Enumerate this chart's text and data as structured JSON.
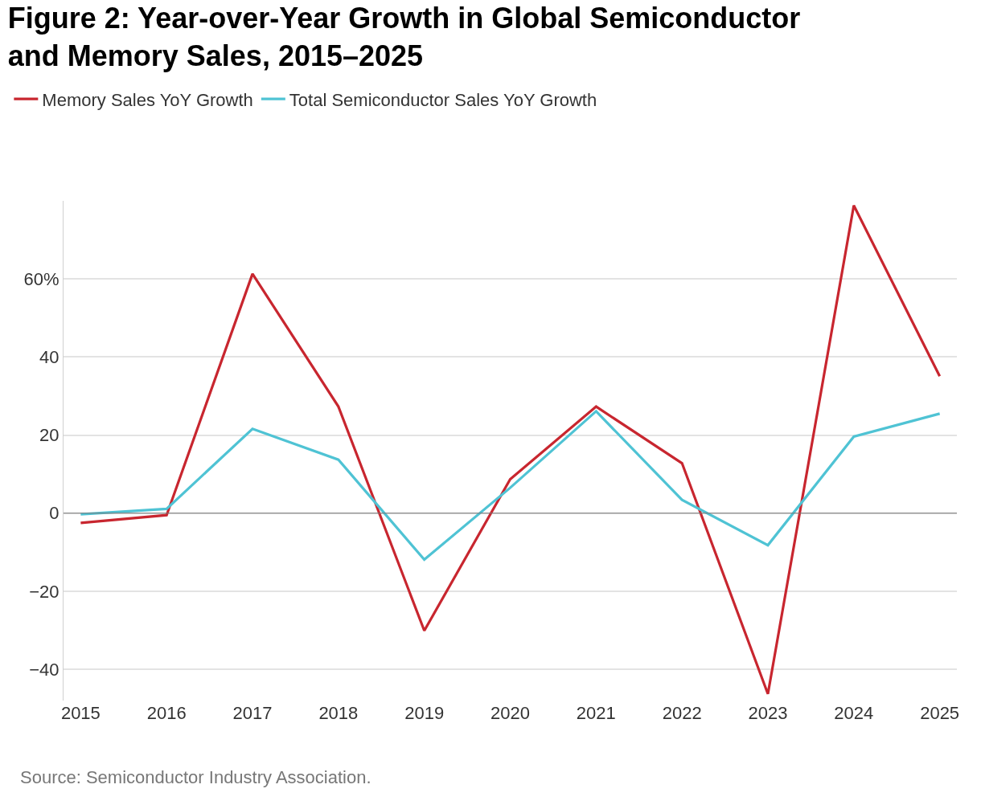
{
  "chart_data": {
    "type": "line",
    "title": "Figure 2: Year-over-Year Growth in Global Semiconductor\nand Memory Sales, 2015–2025",
    "categories": [
      "2015",
      "2016",
      "2017",
      "2018",
      "2019",
      "2020",
      "2021",
      "2022",
      "2023",
      "2024",
      "2025"
    ],
    "series": [
      {
        "name": "Memory Sales YoY Growth",
        "color": "#c8262f",
        "values": [
          -2.5,
          -0.5,
          61.3,
          27.3,
          -30.1,
          8.7,
          27.3,
          12.8,
          -46.3,
          78.8,
          35.1
        ]
      },
      {
        "name": "Total Semiconductor Sales YoY Growth",
        "color": "#4fc3d4",
        "values": [
          -0.3,
          1.1,
          21.6,
          13.7,
          -11.9,
          6.5,
          26.1,
          3.4,
          -8.2,
          19.6,
          25.5
        ]
      }
    ],
    "ylim": [
      -48,
      80
    ],
    "yticks": [
      {
        "value": -40,
        "label": "−40"
      },
      {
        "value": -20,
        "label": "−20"
      },
      0,
      20,
      40,
      {
        "value": 60,
        "label": "60%"
      }
    ],
    "ref_lines": [
      {
        "axis": "y",
        "value": 0,
        "color": "#777777"
      }
    ],
    "grid": "y",
    "legend": "top left",
    "marker": "none",
    "line_style": "solid",
    "annotations": [
      "Source: Semiconductor Industry Association."
    ]
  }
}
